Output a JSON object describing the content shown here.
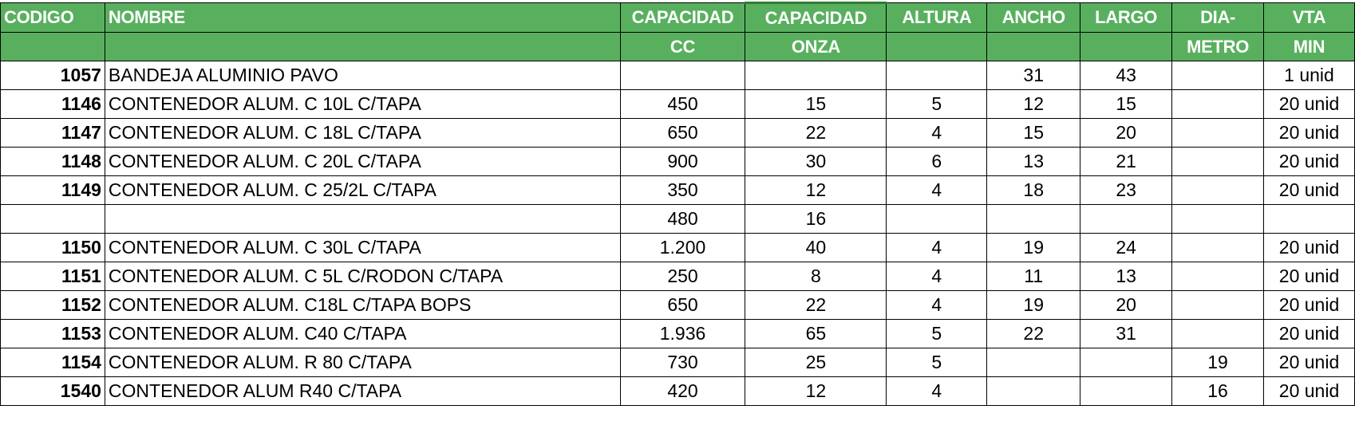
{
  "colors": {
    "header_bg": "#58b05f",
    "header_text": "#ffffff"
  },
  "header_row1": [
    "CODIGO",
    "NOMBRE",
    "CAPACIDAD",
    "CAPACIDAD",
    "ALTURA",
    "ANCHO",
    "LARGO",
    "DIA-",
    "VTA"
  ],
  "header_row2": [
    "",
    "",
    "CC",
    "ONZA",
    "",
    "",
    "",
    "METRO",
    "MIN"
  ],
  "rows": [
    [
      "1057",
      "BANDEJA ALUMINIO PAVO",
      "",
      "",
      "",
      "31",
      "43",
      "",
      "1 unid"
    ],
    [
      "1146",
      "CONTENEDOR ALUM. C 10L C/TAPA",
      "450",
      "15",
      "5",
      "12",
      "15",
      "",
      "20 unid"
    ],
    [
      "1147",
      "CONTENEDOR ALUM. C 18L C/TAPA",
      "650",
      "22",
      "4",
      "15",
      "20",
      "",
      "20 unid"
    ],
    [
      "1148",
      "CONTENEDOR ALUM. C 20L C/TAPA",
      "900",
      "30",
      "6",
      "13",
      "21",
      "",
      "20 unid"
    ],
    [
      "1149",
      "CONTENEDOR ALUM. C 25/2L C/TAPA",
      "350",
      "12",
      "4",
      "18",
      "23",
      "",
      "20 unid"
    ],
    [
      "",
      "",
      "480",
      "16",
      "",
      "",
      "",
      "",
      ""
    ],
    [
      "1150",
      "CONTENEDOR ALUM. C 30L C/TAPA",
      "1.200",
      "40",
      "4",
      "19",
      "24",
      "",
      "20 unid"
    ],
    [
      "1151",
      "CONTENEDOR ALUM. C 5L C/RODON C/TAPA",
      "250",
      "8",
      "4",
      "11",
      "13",
      "",
      "20 unid"
    ],
    [
      "1152",
      "CONTENEDOR ALUM. C18L C/TAPA BOPS",
      "650",
      "22",
      "4",
      "19",
      "20",
      "",
      "20 unid"
    ],
    [
      "1153",
      "CONTENEDOR ALUM. C40 C/TAPA",
      "1.936",
      "65",
      "5",
      "22",
      "31",
      "",
      "20 unid"
    ],
    [
      "1154",
      "CONTENEDOR ALUM. R 80 C/TAPA",
      "730",
      "25",
      "5",
      "",
      "",
      "19",
      "20 unid"
    ],
    [
      "1540",
      "CONTENEDOR ALUM R40 C/TAPA",
      "420",
      "12",
      "4",
      "",
      "",
      "16",
      "20 unid"
    ]
  ]
}
